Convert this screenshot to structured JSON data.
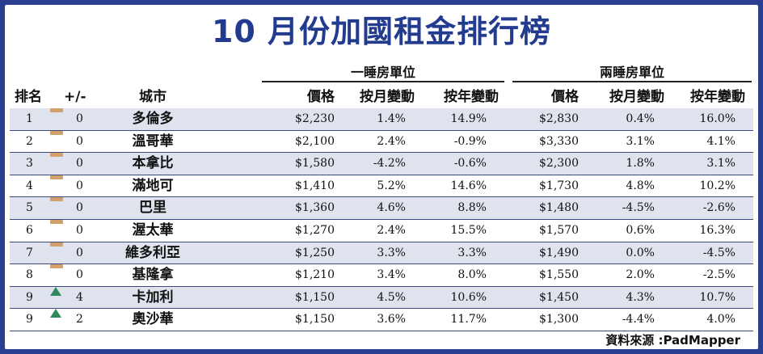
{
  "title": "10 月份加國租金排行榜",
  "groups": {
    "one_bedroom": "一睡房單位",
    "two_bedroom": "兩睡房單位"
  },
  "headers": {
    "rank": "排名",
    "change": "+/-",
    "city": "城市",
    "price": "價格",
    "monthly": "按月變動",
    "yearly": "按年變動"
  },
  "rows": [
    {
      "rank": "1",
      "trend": "same",
      "delta": "0",
      "city": "多倫多",
      "p1": "$2,230",
      "m1": "1.4%",
      "y1": "14.9%",
      "p2": "$2,830",
      "m2": "0.4%",
      "y2": "16.0%"
    },
    {
      "rank": "2",
      "trend": "same",
      "delta": "0",
      "city": "溫哥華",
      "p1": "$2,100",
      "m1": "2.4%",
      "y1": "-0.9%",
      "p2": "$3,330",
      "m2": "3.1%",
      "y2": "4.1%"
    },
    {
      "rank": "3",
      "trend": "same",
      "delta": "0",
      "city": "本拿比",
      "p1": "$1,580",
      "m1": "-4.2%",
      "y1": "-0.6%",
      "p2": "$2,300",
      "m2": "1.8%",
      "y2": "3.1%"
    },
    {
      "rank": "4",
      "trend": "same",
      "delta": "0",
      "city": "滿地可",
      "p1": "$1,410",
      "m1": "5.2%",
      "y1": "14.6%",
      "p2": "$1,730",
      "m2": "4.8%",
      "y2": "10.2%"
    },
    {
      "rank": "5",
      "trend": "same",
      "delta": "0",
      "city": "巴里",
      "p1": "$1,360",
      "m1": "4.6%",
      "y1": "8.8%",
      "p2": "$1,480",
      "m2": "-4.5%",
      "y2": "-2.6%"
    },
    {
      "rank": "6",
      "trend": "same",
      "delta": "0",
      "city": "渥太華",
      "p1": "$1,270",
      "m1": "2.4%",
      "y1": "15.5%",
      "p2": "$1,570",
      "m2": "0.6%",
      "y2": "16.3%"
    },
    {
      "rank": "7",
      "trend": "same",
      "delta": "0",
      "city": "維多利亞",
      "p1": "$1,250",
      "m1": "3.3%",
      "y1": "3.3%",
      "p2": "$1,490",
      "m2": "0.0%",
      "y2": "-4.5%"
    },
    {
      "rank": "8",
      "trend": "same",
      "delta": "0",
      "city": "基隆拿",
      "p1": "$1,210",
      "m1": "3.4%",
      "y1": "8.0%",
      "p2": "$1,550",
      "m2": "2.0%",
      "y2": "-2.5%"
    },
    {
      "rank": "9",
      "trend": "up",
      "delta": "4",
      "city": "卡加利",
      "p1": "$1,150",
      "m1": "4.5%",
      "y1": "10.6%",
      "p2": "$1,450",
      "m2": "4.3%",
      "y2": "10.7%"
    },
    {
      "rank": "9",
      "trend": "up",
      "delta": "2",
      "city": "奧沙華",
      "p1": "$1,150",
      "m1": "3.6%",
      "y1": "11.7%",
      "p2": "$1,300",
      "m2": "-4.4%",
      "y2": "4.0%"
    }
  ],
  "colors": {
    "frame": "#2a3f8f",
    "title": "#233b8e",
    "shade": "#dfe3ee",
    "same_marker": "#d2a06a",
    "up_marker": "#2e8a5a"
  },
  "source": "資料來源 :PadMapper"
}
